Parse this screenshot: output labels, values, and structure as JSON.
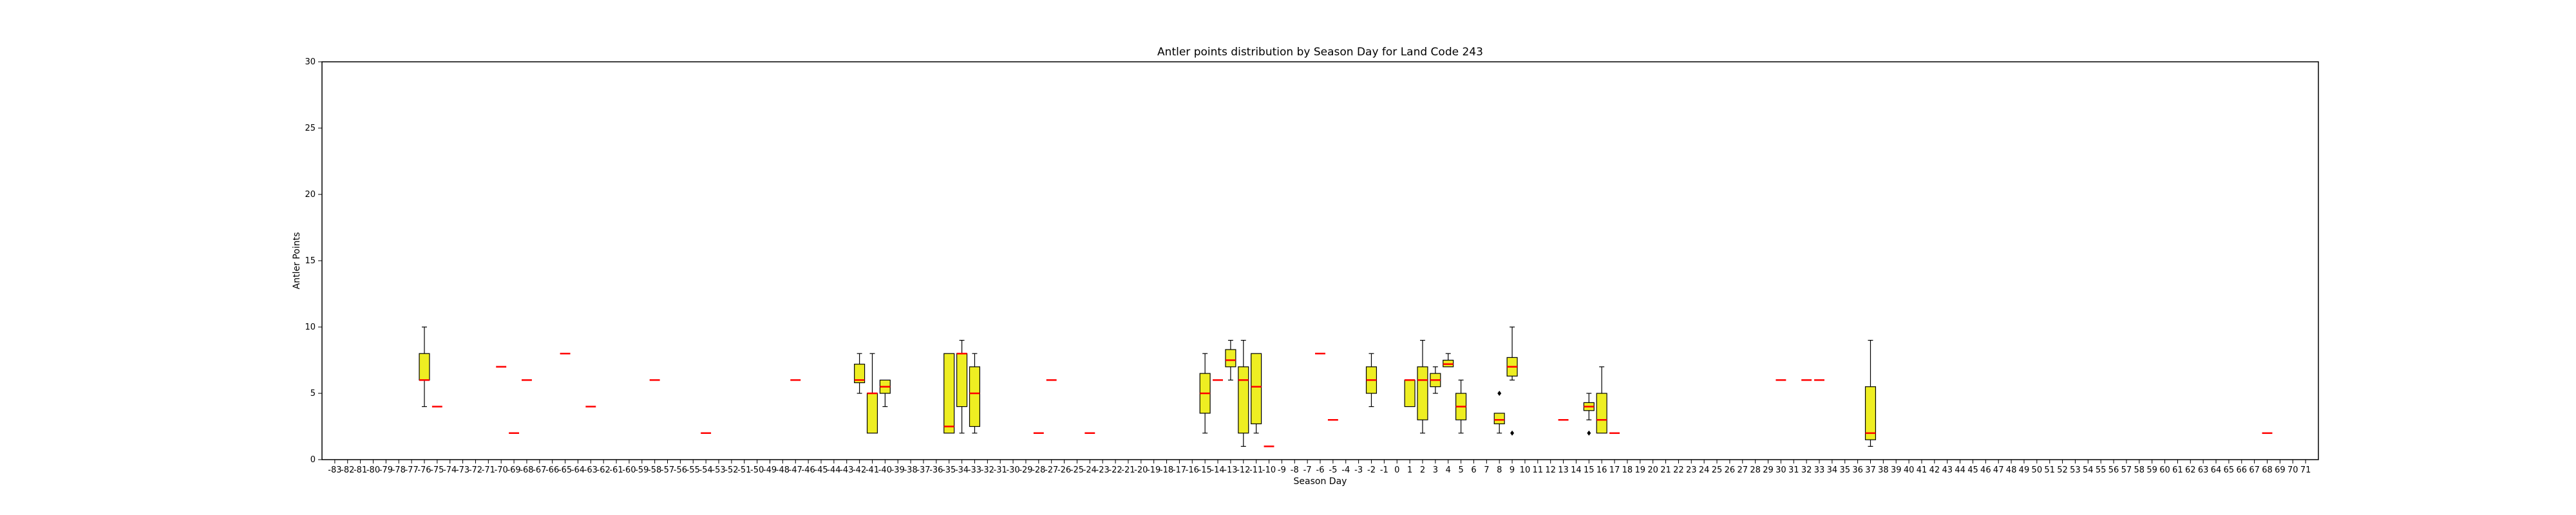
{
  "chart_data": {
    "type": "box",
    "title": "Antler points distribution by Season Day for Land Code 243",
    "xlabel": "Season Day",
    "ylabel": "Antler Points",
    "ylim": [
      0,
      30
    ],
    "yticks": [
      0,
      5,
      10,
      15,
      20,
      25,
      30
    ],
    "xticks_range": [
      -83,
      71
    ],
    "grid": false,
    "colors": {
      "box_fill": "#eeee22",
      "median": "#ff0000",
      "edges": "#000000"
    },
    "boxes": [
      {
        "x": -76,
        "min": 4,
        "q1": 6,
        "med": 6,
        "q3": 8,
        "max": 10
      },
      {
        "x": -75,
        "min": 4,
        "q1": 4,
        "med": 4,
        "q3": 4,
        "max": 4
      },
      {
        "x": -70,
        "min": 7,
        "q1": 7,
        "med": 7,
        "q3": 7,
        "max": 7
      },
      {
        "x": -69,
        "min": 2,
        "q1": 2,
        "med": 2,
        "q3": 2,
        "max": 2
      },
      {
        "x": -68,
        "min": 6,
        "q1": 6,
        "med": 6,
        "q3": 6,
        "max": 6
      },
      {
        "x": -65,
        "min": 8,
        "q1": 8,
        "med": 8,
        "q3": 8,
        "max": 8
      },
      {
        "x": -63,
        "min": 4,
        "q1": 4,
        "med": 4,
        "q3": 4,
        "max": 4
      },
      {
        "x": -58,
        "min": 6,
        "q1": 6,
        "med": 6,
        "q3": 6,
        "max": 6
      },
      {
        "x": -54,
        "min": 2,
        "q1": 2,
        "med": 2,
        "q3": 2,
        "max": 2
      },
      {
        "x": -47,
        "min": 6,
        "q1": 6,
        "med": 6,
        "q3": 6,
        "max": 6
      },
      {
        "x": -42,
        "min": 5,
        "q1": 5.8,
        "med": 6,
        "q3": 7.2,
        "max": 8
      },
      {
        "x": -41,
        "min": 2,
        "q1": 2,
        "med": 5,
        "q3": 5,
        "max": 8
      },
      {
        "x": -40,
        "min": 4,
        "q1": 5,
        "med": 5.5,
        "q3": 6,
        "max": 6
      },
      {
        "x": -35,
        "min": 2,
        "q1": 2,
        "med": 2.5,
        "q3": 8,
        "max": 8
      },
      {
        "x": -34,
        "min": 2,
        "q1": 4,
        "med": 8,
        "q3": 8,
        "max": 9
      },
      {
        "x": -33,
        "min": 2,
        "q1": 2.5,
        "med": 5,
        "q3": 7,
        "max": 8
      },
      {
        "x": -28,
        "min": 2,
        "q1": 2,
        "med": 2,
        "q3": 2,
        "max": 2
      },
      {
        "x": -27,
        "min": 6,
        "q1": 6,
        "med": 6,
        "q3": 6,
        "max": 6
      },
      {
        "x": -24,
        "min": 2,
        "q1": 2,
        "med": 2,
        "q3": 2,
        "max": 2
      },
      {
        "x": -15,
        "min": 2,
        "q1": 3.5,
        "med": 5,
        "q3": 6.5,
        "max": 8
      },
      {
        "x": -14,
        "min": 6,
        "q1": 6,
        "med": 6,
        "q3": 6,
        "max": 6
      },
      {
        "x": -13,
        "min": 6,
        "q1": 7,
        "med": 7.5,
        "q3": 8.3,
        "max": 9
      },
      {
        "x": -12,
        "min": 1,
        "q1": 2,
        "med": 6,
        "q3": 7,
        "max": 9
      },
      {
        "x": -11,
        "min": 2,
        "q1": 2.7,
        "med": 5.5,
        "q3": 8,
        "max": 8
      },
      {
        "x": -10,
        "min": 1,
        "q1": 1,
        "med": 1,
        "q3": 1,
        "max": 1
      },
      {
        "x": -6,
        "min": 8,
        "q1": 8,
        "med": 8,
        "q3": 8,
        "max": 8
      },
      {
        "x": -5,
        "min": 3,
        "q1": 3,
        "med": 3,
        "q3": 3,
        "max": 3
      },
      {
        "x": -2,
        "min": 4,
        "q1": 5,
        "med": 6,
        "q3": 7,
        "max": 8
      },
      {
        "x": 1,
        "min": 4,
        "q1": 4,
        "med": 6,
        "q3": 6,
        "max": 6
      },
      {
        "x": 2,
        "min": 2,
        "q1": 3,
        "med": 6,
        "q3": 7,
        "max": 9
      },
      {
        "x": 3,
        "min": 5,
        "q1": 5.5,
        "med": 6,
        "q3": 6.5,
        "max": 7
      },
      {
        "x": 4,
        "min": 7,
        "q1": 7,
        "med": 7.2,
        "q3": 7.5,
        "max": 8
      },
      {
        "x": 5,
        "min": 2,
        "q1": 3,
        "med": 4,
        "q3": 5,
        "max": 6
      },
      {
        "x": 8,
        "min": 2,
        "q1": 2.7,
        "med": 3,
        "q3": 3.5,
        "max": 3.5,
        "fliers": [
          5
        ]
      },
      {
        "x": 9,
        "min": 6,
        "q1": 6.3,
        "med": 7,
        "q3": 7.7,
        "max": 10,
        "fliers": [
          2
        ]
      },
      {
        "x": 13,
        "min": 3,
        "q1": 3,
        "med": 3,
        "q3": 3,
        "max": 3
      },
      {
        "x": 15,
        "min": 3,
        "q1": 3.7,
        "med": 4,
        "q3": 4.3,
        "max": 5,
        "fliers": [
          2
        ]
      },
      {
        "x": 16,
        "min": 2,
        "q1": 2,
        "med": 3,
        "q3": 5,
        "max": 7
      },
      {
        "x": 17,
        "min": 2,
        "q1": 2,
        "med": 2,
        "q3": 2,
        "max": 2
      },
      {
        "x": 30,
        "min": 6,
        "q1": 6,
        "med": 6,
        "q3": 6,
        "max": 6
      },
      {
        "x": 32,
        "min": 6,
        "q1": 6,
        "med": 6,
        "q3": 6,
        "max": 6
      },
      {
        "x": 33,
        "min": 6,
        "q1": 6,
        "med": 6,
        "q3": 6,
        "max": 6
      },
      {
        "x": 37,
        "min": 1,
        "q1": 1.5,
        "med": 2,
        "q3": 5.5,
        "max": 9
      },
      {
        "x": 68,
        "min": 2,
        "q1": 2,
        "med": 2,
        "q3": 2,
        "max": 2
      }
    ]
  }
}
